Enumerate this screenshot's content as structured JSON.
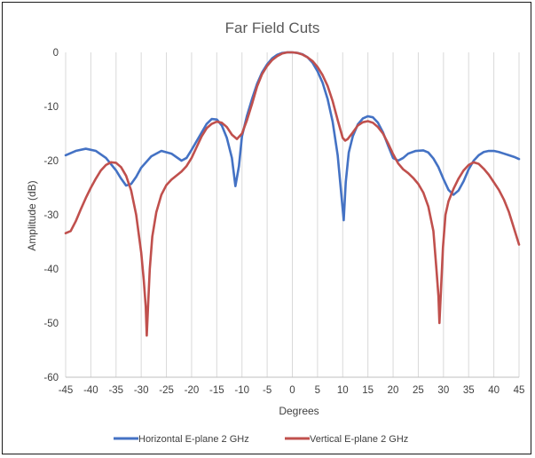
{
  "chart_data": {
    "type": "line",
    "title": "Far Field Cuts",
    "xlabel": "Degrees",
    "ylabel": "Amplitude (dB)",
    "xlim": [
      -45,
      45
    ],
    "ylim": [
      -60,
      0
    ],
    "xticks": [
      -45,
      -40,
      -35,
      -30,
      -25,
      -20,
      -15,
      -10,
      -5,
      0,
      5,
      10,
      15,
      20,
      25,
      30,
      35,
      40,
      45
    ],
    "yticks": [
      0,
      -10,
      -20,
      -30,
      -40,
      -50,
      -60
    ],
    "grid": "vertical",
    "legend_position": "bottom",
    "series": [
      {
        "name": "Horizontal E-plane 2 GHz",
        "color": "#4472C4",
        "points": [
          [
            -45,
            -19
          ],
          [
            -43,
            -18.2
          ],
          [
            -41,
            -17.8
          ],
          [
            -39,
            -18.2
          ],
          [
            -37,
            -19.5
          ],
          [
            -35,
            -21.8
          ],
          [
            -34,
            -23.3
          ],
          [
            -33,
            -24.6
          ],
          [
            -32,
            -24.3
          ],
          [
            -31,
            -23
          ],
          [
            -30,
            -21.3
          ],
          [
            -28,
            -19.2
          ],
          [
            -26,
            -18.2
          ],
          [
            -24,
            -18.7
          ],
          [
            -22,
            -20
          ],
          [
            -21,
            -19.5
          ],
          [
            -20,
            -18
          ],
          [
            -18,
            -14.8
          ],
          [
            -17,
            -13.2
          ],
          [
            -16,
            -12.3
          ],
          [
            -15,
            -12.4
          ],
          [
            -14,
            -13.5
          ],
          [
            -13,
            -15.8
          ],
          [
            -12,
            -19.5
          ],
          [
            -11.3,
            -24.7
          ],
          [
            -10.6,
            -21
          ],
          [
            -10,
            -15.5
          ],
          [
            -9,
            -11.7
          ],
          [
            -8,
            -8.6
          ],
          [
            -7,
            -5.8
          ],
          [
            -6,
            -3.7
          ],
          [
            -5,
            -2.2
          ],
          [
            -4,
            -1.1
          ],
          [
            -3,
            -0.45
          ],
          [
            -2,
            -0.1
          ],
          [
            -1,
            0
          ],
          [
            0,
            0
          ],
          [
            1,
            -0.1
          ],
          [
            2,
            -0.35
          ],
          [
            3,
            -0.9
          ],
          [
            4,
            -1.9
          ],
          [
            5,
            -3.5
          ],
          [
            6,
            -5.6
          ],
          [
            7,
            -8.6
          ],
          [
            8,
            -12.8
          ],
          [
            9,
            -19
          ],
          [
            9.7,
            -26
          ],
          [
            10.2,
            -31
          ],
          [
            10.6,
            -24
          ],
          [
            11.2,
            -18.5
          ],
          [
            12,
            -15.5
          ],
          [
            13,
            -13.3
          ],
          [
            14,
            -12.2
          ],
          [
            15,
            -11.8
          ],
          [
            16,
            -12
          ],
          [
            17,
            -13
          ],
          [
            18,
            -14.8
          ],
          [
            19,
            -17.2
          ],
          [
            20,
            -19.5
          ],
          [
            21,
            -20
          ],
          [
            22,
            -19.5
          ],
          [
            23,
            -18.7
          ],
          [
            24.5,
            -18.2
          ],
          [
            26,
            -18.1
          ],
          [
            27,
            -18.5
          ],
          [
            28,
            -19.6
          ],
          [
            29,
            -21.2
          ],
          [
            30,
            -23.4
          ],
          [
            31,
            -25.4
          ],
          [
            32,
            -26.3
          ],
          [
            33,
            -25.5
          ],
          [
            34,
            -23.8
          ],
          [
            35,
            -21.6
          ],
          [
            36,
            -20
          ],
          [
            37,
            -19
          ],
          [
            38,
            -18.4
          ],
          [
            39,
            -18.2
          ],
          [
            40,
            -18.2
          ],
          [
            41,
            -18.4
          ],
          [
            42,
            -18.7
          ],
          [
            43,
            -19
          ],
          [
            44,
            -19.3
          ],
          [
            45,
            -19.7
          ]
        ]
      },
      {
        "name": "Vertical E-plane 2 GHz",
        "color": "#C0504D",
        "points": [
          [
            -45,
            -33.4
          ],
          [
            -44,
            -33
          ],
          [
            -43,
            -31.2
          ],
          [
            -42,
            -29
          ],
          [
            -41,
            -26.9
          ],
          [
            -40,
            -25
          ],
          [
            -39,
            -23.3
          ],
          [
            -38,
            -21.8
          ],
          [
            -37,
            -20.8
          ],
          [
            -36,
            -20.3
          ],
          [
            -35,
            -20.4
          ],
          [
            -34,
            -21.2
          ],
          [
            -33,
            -22.8
          ],
          [
            -32,
            -25.5
          ],
          [
            -31,
            -30
          ],
          [
            -30,
            -37
          ],
          [
            -29.5,
            -42
          ],
          [
            -29.1,
            -47
          ],
          [
            -28.9,
            -52.3
          ],
          [
            -28.6,
            -46
          ],
          [
            -28.3,
            -40
          ],
          [
            -27.8,
            -34
          ],
          [
            -27,
            -29.5
          ],
          [
            -26,
            -26.3
          ],
          [
            -25,
            -24.5
          ],
          [
            -24,
            -23.5
          ],
          [
            -22,
            -22
          ],
          [
            -21,
            -21
          ],
          [
            -20,
            -19.5
          ],
          [
            -19,
            -17.5
          ],
          [
            -18,
            -15.5
          ],
          [
            -17,
            -14
          ],
          [
            -16,
            -13.2
          ],
          [
            -15,
            -12.8
          ],
          [
            -14,
            -13
          ],
          [
            -13,
            -13.8
          ],
          [
            -12,
            -15.2
          ],
          [
            -11,
            -16
          ],
          [
            -10,
            -15
          ],
          [
            -9,
            -12.5
          ],
          [
            -8,
            -9.5
          ],
          [
            -7,
            -6.3
          ],
          [
            -6,
            -4
          ],
          [
            -5,
            -2.5
          ],
          [
            -4,
            -1.4
          ],
          [
            -3,
            -0.7
          ],
          [
            -2,
            -0.2
          ],
          [
            -1,
            0
          ],
          [
            0,
            0
          ],
          [
            1,
            -0.1
          ],
          [
            2,
            -0.4
          ],
          [
            3,
            -0.9
          ],
          [
            4,
            -1.6
          ],
          [
            5,
            -2.7
          ],
          [
            6,
            -4.2
          ],
          [
            7,
            -6.2
          ],
          [
            8,
            -9
          ],
          [
            9,
            -12.5
          ],
          [
            10,
            -15.8
          ],
          [
            10.5,
            -16.3
          ],
          [
            11,
            -16
          ],
          [
            12,
            -14.8
          ],
          [
            13,
            -13.5
          ],
          [
            14,
            -12.9
          ],
          [
            15,
            -12.7
          ],
          [
            16,
            -13
          ],
          [
            17,
            -13.8
          ],
          [
            18,
            -15
          ],
          [
            19,
            -16.8
          ],
          [
            20,
            -18.8
          ],
          [
            21,
            -20.5
          ],
          [
            22,
            -21.6
          ],
          [
            23,
            -22.3
          ],
          [
            24,
            -23.2
          ],
          [
            25,
            -24.3
          ],
          [
            26,
            -25.9
          ],
          [
            27,
            -28.5
          ],
          [
            28,
            -33
          ],
          [
            28.6,
            -40
          ],
          [
            29,
            -45
          ],
          [
            29.2,
            -50
          ],
          [
            29.5,
            -44
          ],
          [
            29.9,
            -36
          ],
          [
            30.4,
            -30
          ],
          [
            31,
            -27.5
          ],
          [
            32,
            -25.2
          ],
          [
            33,
            -23.3
          ],
          [
            34,
            -21.8
          ],
          [
            35,
            -20.8
          ],
          [
            36,
            -20.3
          ],
          [
            37,
            -20.6
          ],
          [
            38,
            -21.5
          ],
          [
            39,
            -22.6
          ],
          [
            40,
            -24
          ],
          [
            41,
            -25.4
          ],
          [
            42,
            -27.2
          ],
          [
            43,
            -29.5
          ],
          [
            44,
            -32.5
          ],
          [
            45,
            -35.5
          ]
        ]
      }
    ]
  }
}
